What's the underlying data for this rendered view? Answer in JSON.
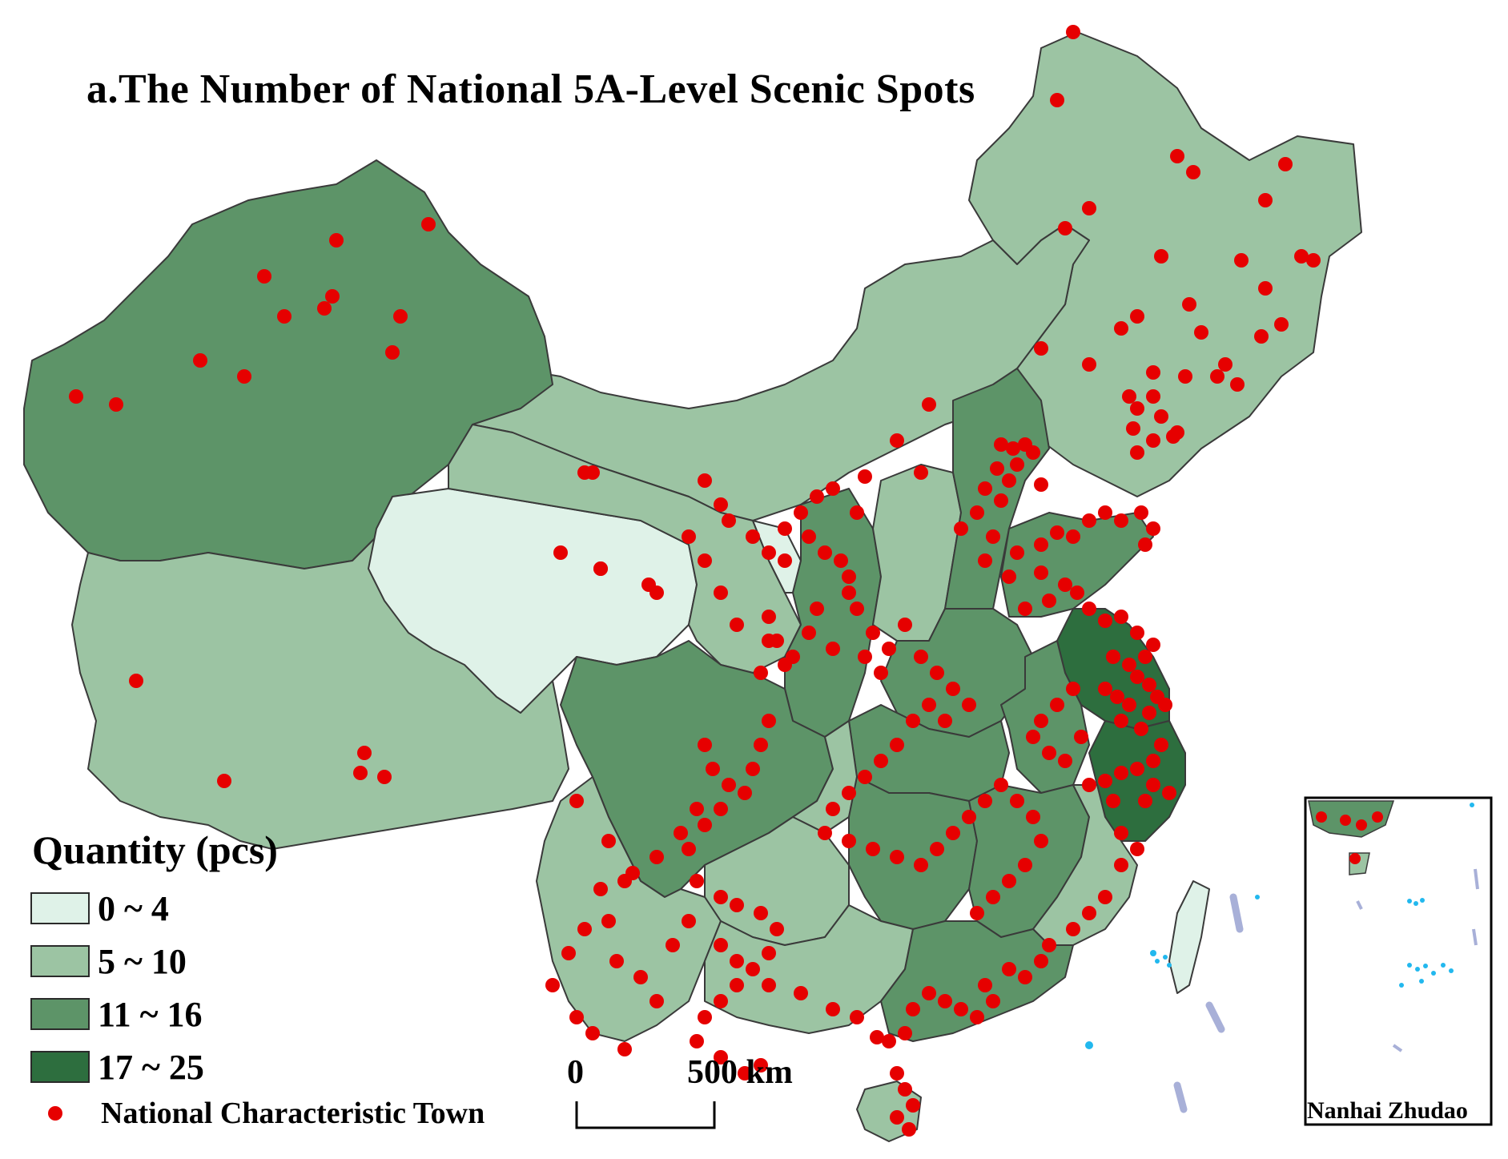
{
  "title": "a.The Number of National 5A-Level Scenic Spots",
  "legend": {
    "title": "Quantity (pcs)",
    "classes": [
      {
        "label": "0 ~ 4",
        "color": "#dff2e8"
      },
      {
        "label": "5 ~ 10",
        "color": "#9cc4a3"
      },
      {
        "label": "11 ~ 16",
        "color": "#5d9468"
      },
      {
        "label": "17 ~ 25",
        "color": "#2d6e3e"
      }
    ],
    "point_label": "National Characteristic Town",
    "point_color": "#e60000"
  },
  "scale_bar": {
    "zero": "0",
    "distance": "500 km"
  },
  "inset": {
    "label": "Nanhai Zhudao"
  },
  "colors": {
    "border": "#3a3a3a",
    "island": "#22b8ee",
    "nine_dash": "#a8b0d8"
  }
}
